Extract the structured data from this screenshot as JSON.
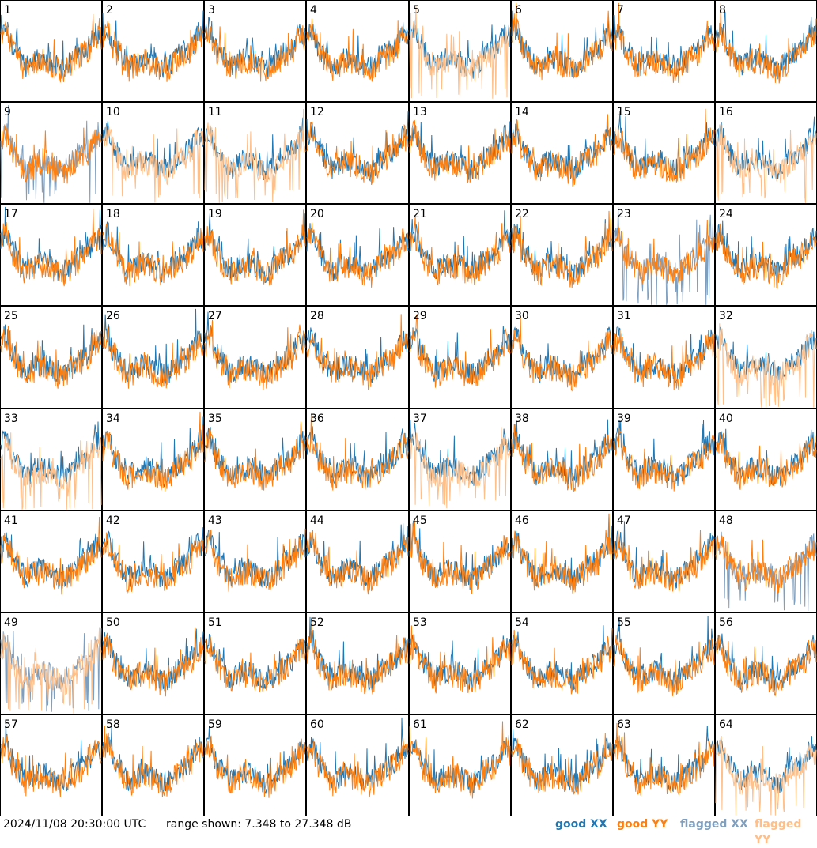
{
  "chart_data": {
    "type": "line",
    "layout": "8x8 small multiples",
    "panel_labels": [
      "1",
      "2",
      "3",
      "4",
      "5",
      "6",
      "7",
      "8",
      "9",
      "10",
      "11",
      "12",
      "13",
      "14",
      "15",
      "16",
      "17",
      "18",
      "19",
      "20",
      "21",
      "22",
      "23",
      "24",
      "25",
      "26",
      "27",
      "28",
      "29",
      "30",
      "31",
      "32",
      "33",
      "34",
      "35",
      "36",
      "37",
      "38",
      "39",
      "40",
      "41",
      "42",
      "43",
      "44",
      "45",
      "46",
      "47",
      "48",
      "49",
      "50",
      "51",
      "52",
      "53",
      "54",
      "55",
      "56",
      "57",
      "58",
      "59",
      "60",
      "61",
      "62",
      "63",
      "64"
    ],
    "y_range_db": [
      7.348,
      27.348
    ],
    "series_status": {
      "xx": [
        "good",
        "good",
        "good",
        "good",
        "good",
        "good",
        "good",
        "good",
        "flagged",
        "good",
        "good",
        "good",
        "good",
        "good",
        "good",
        "good",
        "good",
        "good",
        "good",
        "good",
        "good",
        "good",
        "flagged",
        "good",
        "good",
        "good",
        "good",
        "good",
        "good",
        "good",
        "good",
        "good",
        "good",
        "good",
        "good",
        "good",
        "good",
        "good",
        "good",
        "good",
        "good",
        "good",
        "good",
        "good",
        "good",
        "good",
        "good",
        "flagged",
        "flagged",
        "good",
        "good",
        "good",
        "good",
        "good",
        "good",
        "good",
        "good",
        "good",
        "good",
        "good",
        "good",
        "good",
        "good",
        "good"
      ],
      "yy": [
        "good",
        "good",
        "good",
        "good",
        "flagged",
        "good",
        "good",
        "good",
        "good",
        "flagged",
        "flagged",
        "good",
        "good",
        "good",
        "good",
        "flagged",
        "good",
        "good",
        "good",
        "good",
        "good",
        "good",
        "good",
        "good",
        "good",
        "good",
        "good",
        "good",
        "good",
        "good",
        "good",
        "flagged",
        "flagged",
        "good",
        "good",
        "good",
        "flagged",
        "good",
        "good",
        "good",
        "good",
        "good",
        "good",
        "good",
        "good",
        "good",
        "good",
        "good",
        "flagged",
        "good",
        "good",
        "good",
        "good",
        "good",
        "good",
        "good",
        "good",
        "good",
        "good",
        "good",
        "good",
        "good",
        "good",
        "flagged"
      ]
    },
    "legend": [
      "good XX",
      "good YY",
      "flagged XX",
      "flagged YY"
    ]
  },
  "footer": {
    "timestamp": "2024/11/08 20:30:00 UTC",
    "range_text": "range shown: 7.348 to 27.348 dB"
  },
  "legend": {
    "good_xx": "good XX",
    "good_yy": "good YY",
    "flagged_xx": "flagged XX",
    "flagged_yy": "flagged YY"
  },
  "colors": {
    "good_xx": "#1f77b4",
    "good_yy": "#ff7f0e",
    "flagged_xx": "#7f9fbf",
    "flagged_yy": "#ffbf87"
  }
}
